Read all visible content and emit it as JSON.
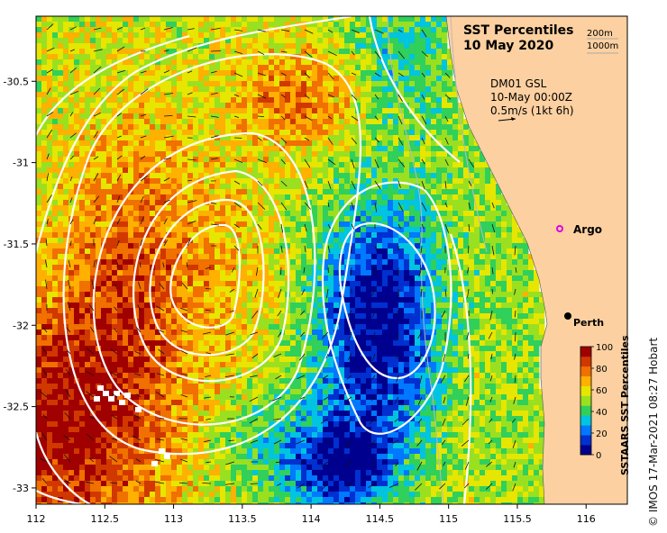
{
  "title": {
    "line1": "SST Percentiles",
    "line2": "10 May 2020"
  },
  "depth_legend": {
    "contour1": "200m",
    "contour2": "1000m"
  },
  "current_info": {
    "line1": "DM01 GSL",
    "line2": "10-May 00:00Z",
    "line3": "0.5m/s (1kt 6h)"
  },
  "markers": {
    "argo": {
      "label": "Argo",
      "lon": 115.87,
      "lat": -31.45,
      "color": "#e000e0"
    },
    "perth": {
      "label": "Perth",
      "lon": 115.86,
      "lat": -31.95
    }
  },
  "axes": {
    "x_ticks": [
      "112",
      "112.5",
      "113",
      "113.5",
      "114",
      "114.5",
      "115",
      "115.5",
      "116"
    ],
    "y_ticks": [
      "-30.5",
      "-31",
      "-31.5",
      "-32",
      "-32.5",
      "-33"
    ],
    "lon_range": [
      112,
      116.3
    ],
    "lat_range": [
      -33.1,
      -30.1
    ]
  },
  "colorbar": {
    "title": "SSTAARS SST Percentiles",
    "ticks": [
      "0",
      "20",
      "40",
      "60",
      "80",
      "100"
    ],
    "colors": [
      "#00008f",
      "#0030d0",
      "#0078ff",
      "#00c4e0",
      "#30d05a",
      "#9ae020",
      "#e6e600",
      "#ffb000",
      "#f07000",
      "#d03800",
      "#a00000"
    ]
  },
  "credit": "© IMOS 17-Mar-2021 08:27 Hobart",
  "colors": {
    "land": "#fcd0a0",
    "contour": "#ffffff"
  }
}
